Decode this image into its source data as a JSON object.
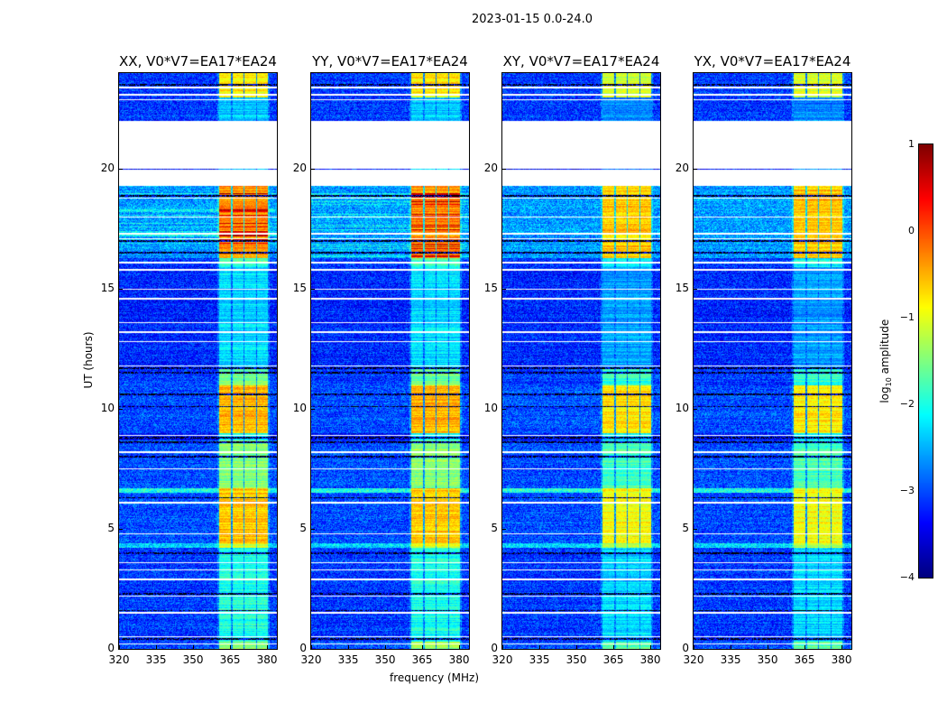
{
  "figure_title": "2023-01-15 0.0-24.0",
  "chart_data": {
    "type": "heatmap",
    "panels": [
      {
        "title": "XX, V0*V7=EA17*EA24",
        "variant": 0
      },
      {
        "title": "YY, V0*V7=EA17*EA24",
        "variant": 1
      },
      {
        "title": "XY, V0*V7=EA17*EA24",
        "variant": 2
      },
      {
        "title": "YX, V0*V7=EA17*EA24",
        "variant": 3
      }
    ],
    "xlabel": "frequency (MHz)",
    "ylabel": "UT (hours)",
    "xlim": [
      320,
      384
    ],
    "ylim": [
      0,
      24
    ],
    "xticks": [
      "320",
      "335",
      "350",
      "365",
      "380"
    ],
    "xtick_values": [
      320,
      335,
      350,
      365,
      380
    ],
    "yticks": [
      "0",
      "5",
      "10",
      "15",
      "20"
    ],
    "ytick_values": [
      0,
      5,
      10,
      15,
      20
    ],
    "colormap": "jet",
    "colorbar": {
      "label_prefix": "log",
      "label_sub": "10",
      "label_suffix": " amplitude",
      "range": [
        -4,
        1
      ],
      "ticks": [
        "1",
        "0",
        "−1",
        "−2",
        "−3",
        "−4"
      ],
      "tick_values": [
        1,
        0,
        -1,
        -2,
        -3,
        -4
      ]
    },
    "rfi_subbands_mhz": [
      [
        360.5,
        365.5
      ],
      [
        366,
        370.5
      ],
      [
        371,
        375.5
      ],
      [
        376,
        380.5
      ]
    ],
    "time_segments_hours": [
      {
        "start": 0.0,
        "end": 0.3,
        "background": -3.0,
        "rfi": -1.4
      },
      {
        "start": 0.3,
        "end": 4.2,
        "background": -3.1,
        "rfi": -2.0
      },
      {
        "start": 4.2,
        "end": 4.4,
        "background": -2.3,
        "rfi": -1.0
      },
      {
        "start": 4.4,
        "end": 6.5,
        "background": -3.0,
        "rfi": -0.6
      },
      {
        "start": 6.5,
        "end": 6.7,
        "background": -2.0,
        "rfi": -0.6
      },
      {
        "start": 6.7,
        "end": 8.7,
        "background": -3.0,
        "rfi": -1.5
      },
      {
        "start": 8.7,
        "end": 9.0,
        "background": -3.3,
        "rfi": -2.0
      },
      {
        "start": 9.0,
        "end": 11.0,
        "background": -3.0,
        "rfi": -0.5
      },
      {
        "start": 11.0,
        "end": 11.7,
        "background": -3.1,
        "rfi": -1.6
      },
      {
        "start": 11.7,
        "end": 15.9,
        "background": -3.2,
        "rfi": -2.3
      },
      {
        "start": 15.9,
        "end": 16.3,
        "background": -3.1,
        "rfi": -1.8
      },
      {
        "start": 16.3,
        "end": 19.3,
        "background": -2.6,
        "rfi": -0.3
      },
      {
        "start": 22.0,
        "end": 23.0,
        "background": -3.1,
        "rfi": -2.4
      },
      {
        "start": 23.0,
        "end": 24.0,
        "background": -3.1,
        "rfi": -0.8
      }
    ],
    "no_data_hours": [
      [
        19.5,
        22.0
      ]
    ],
    "single_row_hours": [
      20.0
    ],
    "flagged_white_rows_hours": [
      0.2,
      0.5,
      1.5,
      2.2,
      2.9,
      3.3,
      3.6,
      4.8,
      6.1,
      7.5,
      8.2,
      8.9,
      11.8,
      12.8,
      13.2,
      13.6,
      14.6,
      15.0,
      15.8,
      16.1,
      17.1,
      17.3,
      18.0,
      18.8,
      22.9,
      23.1,
      23.4
    ],
    "dark_rows_hours": [
      0.4,
      1.6,
      2.3,
      4.0,
      6.3,
      8.0,
      8.6,
      8.8,
      10.1,
      10.6,
      11.5,
      11.7,
      16.5,
      17.0,
      18.9,
      19.35,
      19.45,
      23.5
    ]
  }
}
